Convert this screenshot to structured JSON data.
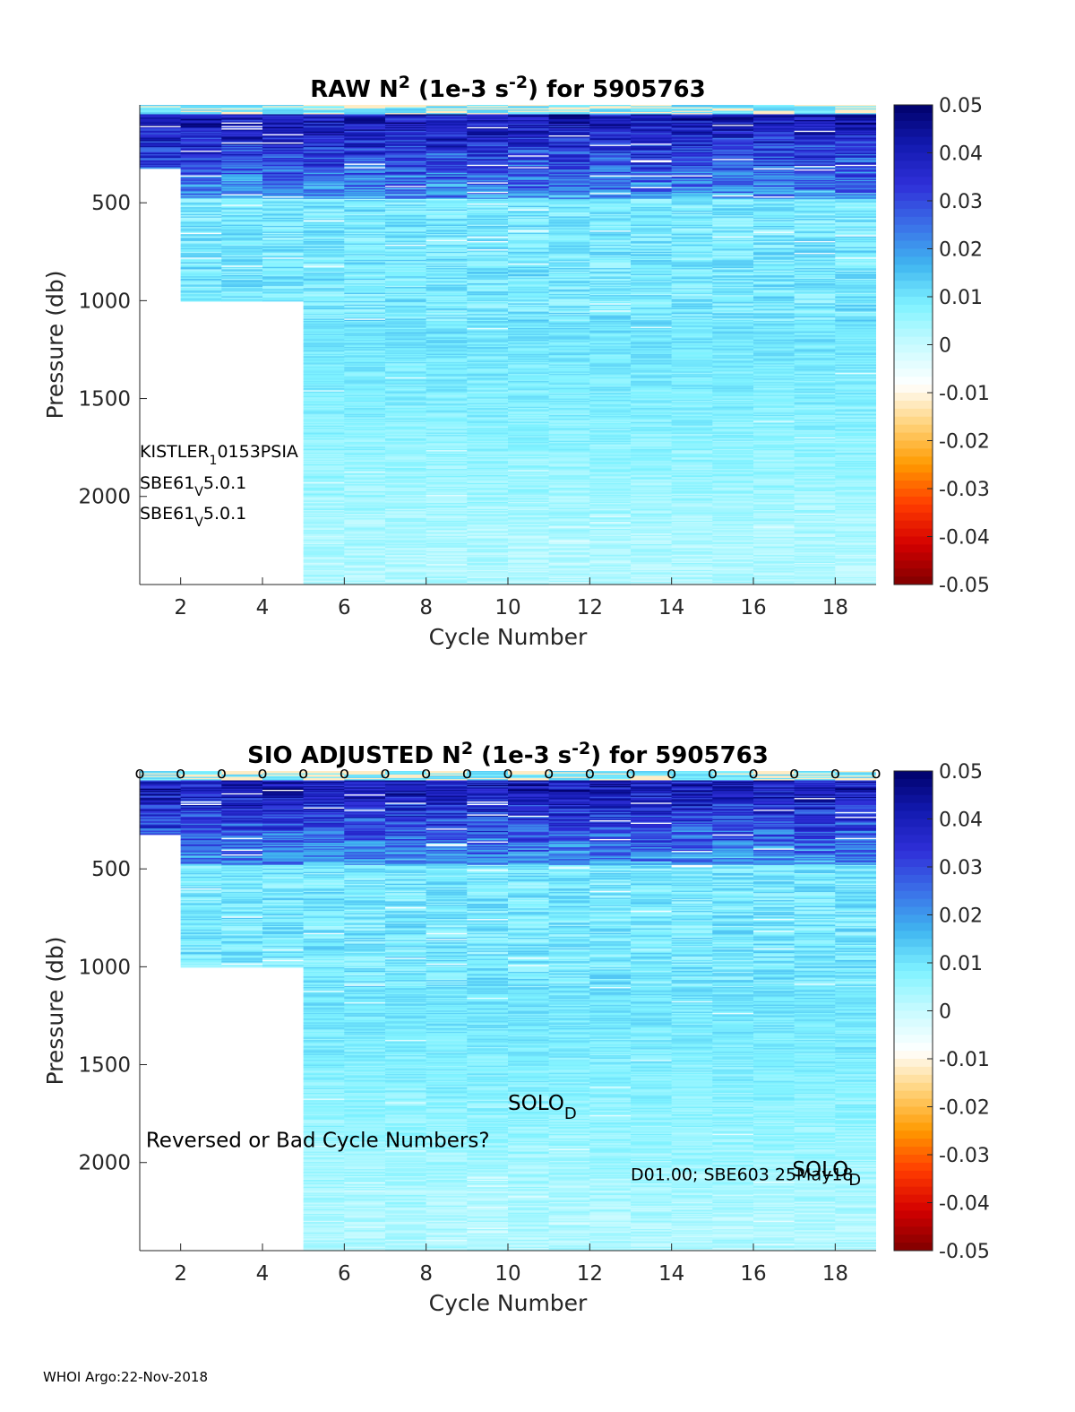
{
  "footer": "WHOI Argo:22-Nov-2018",
  "colors": {
    "colormap": [
      "#7f0000",
      "#d40000",
      "#ff3c00",
      "#ff9a00",
      "#ffd37a",
      "#ffffff",
      "#c8fbff",
      "#7ff2ff",
      "#3fb5f0",
      "#3b6fe8",
      "#2f2fd8",
      "#121ab0",
      "#00006a"
    ]
  },
  "chart_data": [
    {
      "type": "heatmap",
      "title": "RAW N² (1e-3 s⁻²) for 5905763",
      "title_main": "RAW N",
      "title_sup": "2",
      "title_mid": " (1e-3 s",
      "title_sup2": "-2",
      "title_end": ") for 5905763",
      "xlabel": "Cycle Number",
      "ylabel": "Pressure (db)",
      "xlim": [
        1,
        19
      ],
      "ylim": [
        0,
        2450
      ],
      "y_reversed": true,
      "xticks": [
        2,
        4,
        6,
        8,
        10,
        12,
        14,
        16,
        18
      ],
      "yticks": [
        500,
        1000,
        1500,
        2000
      ],
      "cycles": [
        1,
        2,
        3,
        4,
        5,
        6,
        7,
        8,
        9,
        10,
        11,
        12,
        13,
        14,
        15,
        16,
        17,
        18
      ],
      "max_pressure": [
        320,
        1000,
        1000,
        1000,
        2450,
        2450,
        2450,
        2450,
        2450,
        2450,
        2450,
        2450,
        2450,
        2450,
        2450,
        2450,
        2450,
        2450
      ],
      "colorbar": {
        "ticks": [
          "0.05",
          "0.04",
          "0.03",
          "0.02",
          "0.01",
          "0",
          "-0.01",
          "-0.02",
          "-0.03",
          "-0.04",
          "-0.05"
        ],
        "range": [
          -0.05,
          0.05
        ]
      },
      "annotations": [
        {
          "base": "KISTLER",
          "sub": "1",
          "rest": "0153PSIA",
          "pressure": 1800,
          "cycle": 1.0
        },
        {
          "base": "SBE61",
          "sub": "V",
          "rest": "5.0.1",
          "pressure": 1960,
          "cycle": 1.0
        },
        {
          "base": "SBE61",
          "sub": "V",
          "rest": "5.0.1",
          "pressure": 2115,
          "cycle": 1.0
        }
      ]
    },
    {
      "type": "heatmap",
      "title": "SIO  ADJUSTED N² (1e-3 s⁻²) for 5905763",
      "title_main": "SIO  ADJUSTED N",
      "title_sup": "2",
      "title_mid": " (1e-3 s",
      "title_sup2": "-2",
      "title_end": ") for 5905763",
      "xlabel": "Cycle Number",
      "ylabel": "Pressure (db)",
      "xlim": [
        1,
        19
      ],
      "ylim": [
        0,
        2450
      ],
      "y_reversed": true,
      "xticks": [
        2,
        4,
        6,
        8,
        10,
        12,
        14,
        16,
        18
      ],
      "yticks": [
        500,
        1000,
        1500,
        2000
      ],
      "cycles": [
        1,
        2,
        3,
        4,
        5,
        6,
        7,
        8,
        9,
        10,
        11,
        12,
        13,
        14,
        15,
        16,
        17,
        18
      ],
      "max_pressure": [
        320,
        1000,
        1000,
        1000,
        2450,
        2450,
        2450,
        2450,
        2450,
        2450,
        2450,
        2450,
        2450,
        2450,
        2450,
        2450,
        2450,
        2450
      ],
      "colorbar": {
        "ticks": [
          "0.05",
          "0.04",
          "0.03",
          "0.02",
          "0.01",
          "0",
          "-0.01",
          "-0.02",
          "-0.03",
          "-0.04",
          "-0.05"
        ],
        "range": [
          -0.05,
          0.05
        ]
      },
      "marker": "o",
      "marker_cycles": [
        1,
        2,
        3,
        4,
        5,
        6,
        7,
        8,
        9,
        10,
        11,
        12,
        13,
        14,
        15,
        16,
        17,
        18,
        19
      ],
      "notes": [
        {
          "text": "Reversed or Bad Cycle Numbers?",
          "cycle": 1.15,
          "pressure": 1920
        },
        {
          "base": "SOLO",
          "sub": "D",
          "cycle": 10.0,
          "pressure": 1730
        },
        {
          "text": "D01.00; SBE603 25May18",
          "cycle": 13.0,
          "pressure": 2090
        },
        {
          "base": "SOLO",
          "sub": "D",
          "cycle": 16.95,
          "pressure": 2070
        }
      ]
    }
  ]
}
